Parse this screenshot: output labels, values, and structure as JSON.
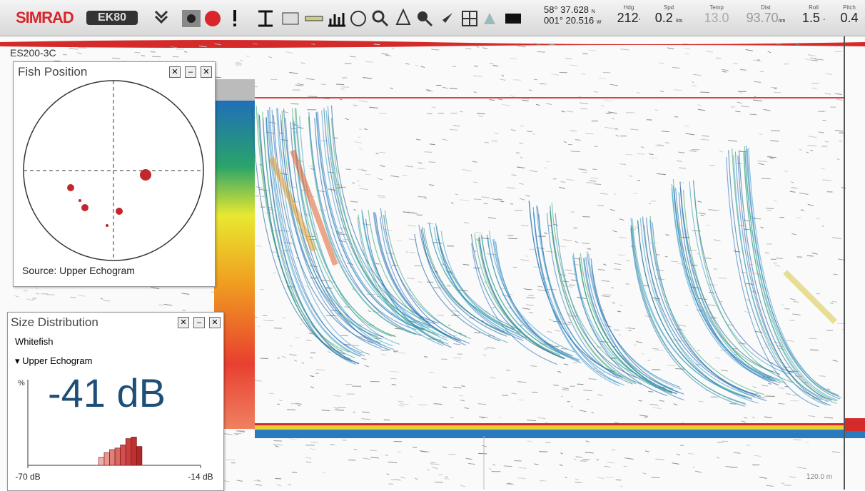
{
  "toolbar": {
    "brand": "SIMRAD",
    "product": "EK80"
  },
  "navigation": {
    "latitude": "58° 37.628",
    "lat_hemisphere": "N",
    "longitude": "001° 20.516",
    "lon_hemisphere": "W",
    "heading": {
      "label": "Hdg",
      "value": "212",
      "unit": "°"
    },
    "speed": {
      "label": "Spd",
      "value": "0.2",
      "unit": "kts"
    },
    "temperature": {
      "label": "Temp",
      "value": "13.0"
    },
    "distance": {
      "label": "Dist",
      "value": "93.70",
      "unit": "nm"
    },
    "roll": {
      "label": "Roll",
      "value": "1.5",
      "unit": "°"
    },
    "pitch": {
      "label": "Pitch",
      "value": "0.4"
    }
  },
  "echogram": {
    "transducer": "ES200-3C",
    "range_label": "120.0 m"
  },
  "fish_position": {
    "title": "Fish Position",
    "source": "Source: Upper Echogram"
  },
  "size_distribution": {
    "title": "Size Distribution",
    "species": "Whitefish",
    "source": "Upper Echogram",
    "value": "-41 dB",
    "y_label": "%",
    "xlim": [
      -70,
      -14
    ],
    "xticks": [
      {
        "value": -70,
        "label": "-70 dB"
      },
      {
        "value": -14,
        "label": "-14 dB"
      }
    ],
    "bins": [
      -47,
      -45.25,
      -43.5,
      -41.75,
      -40,
      -38.25,
      -36.5,
      -34.75,
      -33
    ],
    "counts": [
      5,
      8,
      10,
      11,
      13,
      17,
      18,
      12
    ]
  }
}
